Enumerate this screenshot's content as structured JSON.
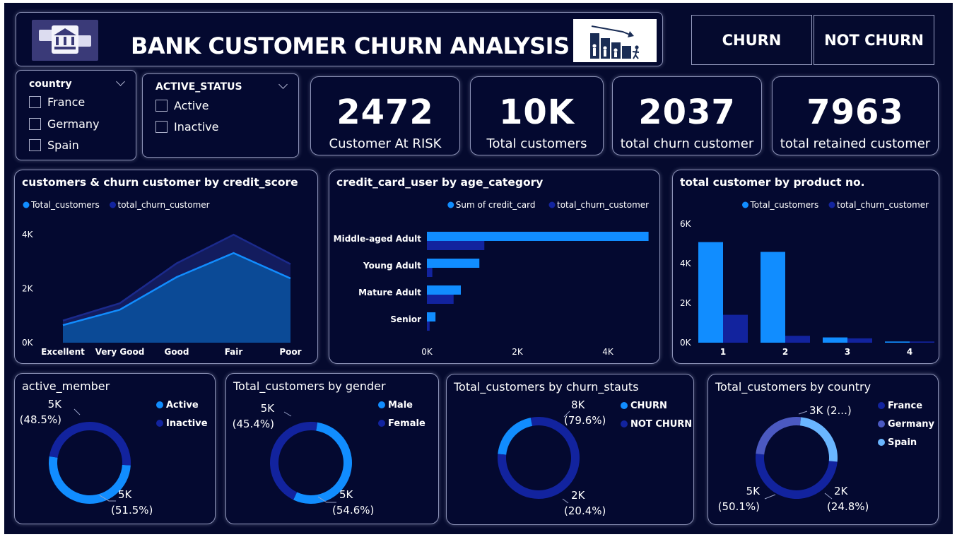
{
  "header": {
    "title": "BANK CUSTOMER CHURN ANALYSIS",
    "churn_button": "CHURN",
    "not_churn_button": "NOT CHURN"
  },
  "slicers": {
    "country": {
      "title": "country",
      "options": [
        "France",
        "Germany",
        "Spain"
      ]
    },
    "active_status": {
      "title": "ACTIVE_STATUS",
      "options": [
        "Active",
        "Inactive"
      ]
    }
  },
  "kpis": [
    {
      "value": "2472",
      "label": "Customer At RISK"
    },
    {
      "value": "10K",
      "label": "Total customers"
    },
    {
      "value": "2037",
      "label": "total churn customer"
    },
    {
      "value": "7963",
      "label": "total retained customer"
    }
  ],
  "colors": {
    "background": "#050a2e",
    "card": "#040930",
    "light_blue": "#118dff",
    "dark_blue": "#12239e",
    "mid_blue": "#4b59c1",
    "pale_blue": "#6ab6ff",
    "area_fill": "#0b4a96",
    "area_back": "#131c5e"
  },
  "chart_data": [
    {
      "type": "area",
      "title": "customers & churn customer by credit_score",
      "categories": [
        "Excellent",
        "Very Good",
        "Good",
        "Fair",
        "Poor"
      ],
      "series": [
        {
          "name": "Total_customers",
          "values": [
            650,
            1220,
            2430,
            3320,
            2380
          ]
        },
        {
          "name": "total_churn_customer",
          "values": [
            820,
            1460,
            2940,
            4000,
            2910
          ]
        }
      ],
      "ylim": [
        0,
        4500
      ],
      "yticks": [
        "0K",
        "2K",
        "4K"
      ],
      "legend": "top-left"
    },
    {
      "type": "bar",
      "orientation": "horizontal",
      "title": "credit_card_user by age_category",
      "categories": [
        "Middle-aged Adult",
        "Young Adult",
        "Mature Adult",
        "Senior"
      ],
      "series": [
        {
          "name": "Sum of credit_card",
          "values": [
            4900,
            1160,
            750,
            190
          ]
        },
        {
          "name": "total_churn_customer",
          "values": [
            1270,
            120,
            590,
            60
          ]
        }
      ],
      "xlim": [
        0,
        5000
      ],
      "xticks": [
        "0K",
        "2K",
        "4K"
      ],
      "legend": "top-right"
    },
    {
      "type": "bar",
      "title": "total customer by product no.",
      "categories": [
        "1",
        "2",
        "3",
        "4"
      ],
      "series": [
        {
          "name": "Total_customers",
          "values": [
            5084,
            4590,
            266,
            60
          ]
        },
        {
          "name": "total_churn_customer",
          "values": [
            1409,
            348,
            220,
            60
          ]
        }
      ],
      "ylim": [
        0,
        6000
      ],
      "yticks": [
        "0K",
        "2K",
        "4K",
        "6K"
      ],
      "legend": "top-right"
    },
    {
      "type": "pie",
      "title": "active_member",
      "legend": [
        "Active",
        "Inactive"
      ],
      "slices": [
        {
          "name": "Active",
          "value": 51.5,
          "label1": "5K",
          "label2": "(51.5%)"
        },
        {
          "name": "Inactive",
          "value": 48.5,
          "label1": "5K",
          "label2": "(48.5%)"
        }
      ]
    },
    {
      "type": "pie",
      "title": "Total_customers by gender",
      "legend": [
        "Male",
        "Female"
      ],
      "slices": [
        {
          "name": "Male",
          "value": 54.6,
          "label1": "5K",
          "label2": "(54.6%)"
        },
        {
          "name": "Female",
          "value": 45.4,
          "label1": "5K",
          "label2": "(45.4%)"
        }
      ]
    },
    {
      "type": "pie",
      "title": "Total_customers by churn_stauts",
      "legend": [
        "CHURN",
        "NOT CHURN"
      ],
      "slices": [
        {
          "name": "CHURN",
          "value": 20.4,
          "label1": "2K",
          "label2": "(20.4%)"
        },
        {
          "name": "NOT CHURN",
          "value": 79.6,
          "label1": "8K",
          "label2": "(79.6%)"
        }
      ]
    },
    {
      "type": "pie",
      "title": "Total_customers by country",
      "legend": [
        "France",
        "Germany",
        "Spain"
      ],
      "slices": [
        {
          "name": "France",
          "value": 50.1,
          "label1": "5K",
          "label2": "(50.1%)"
        },
        {
          "name": "Germany",
          "value": 25.1,
          "label1": "3K (2...)",
          "label2": ""
        },
        {
          "name": "Spain",
          "value": 24.8,
          "label1": "2K",
          "label2": "(24.8%)"
        }
      ]
    }
  ]
}
